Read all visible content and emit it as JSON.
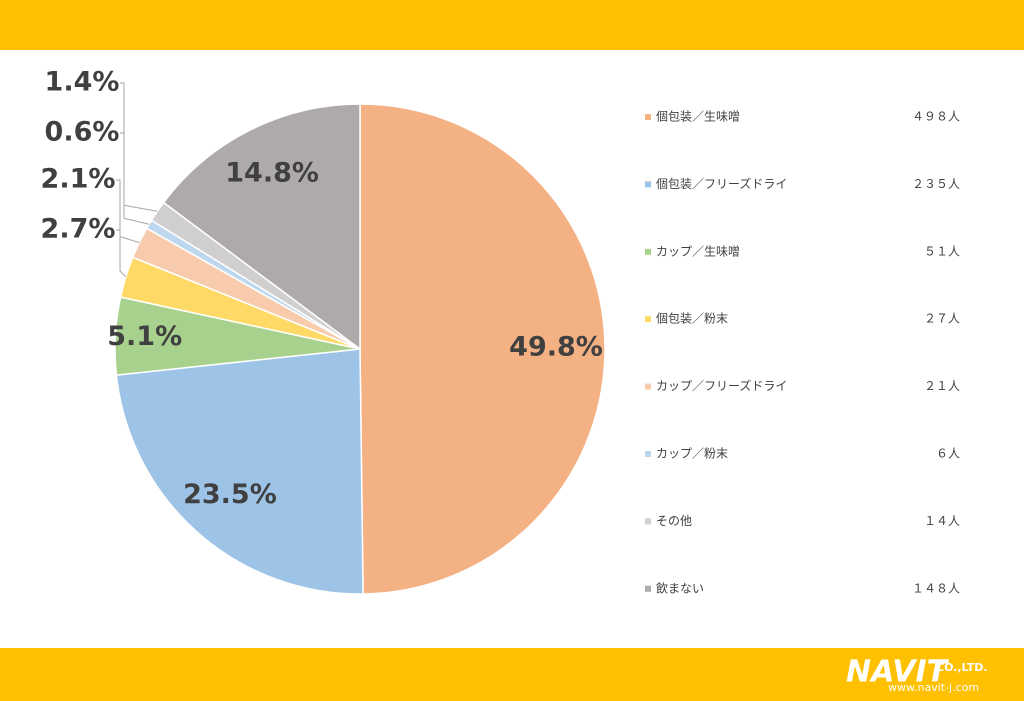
{
  "chart_data": {
    "type": "pie",
    "categories": [
      "個包装／生味噌",
      "個包装／フリーズドライ",
      "カップ／生味噌",
      "個包装／粉末",
      "カップ／フリーズドライ",
      "カップ／粉末",
      "その他",
      "飲まない"
    ],
    "values": [
      49.8,
      23.5,
      5.1,
      2.7,
      2.1,
      0.6,
      1.4,
      14.8
    ],
    "value_labels": [
      "49.8%",
      "23.5%",
      "5.1%",
      "2.7%",
      "2.1%",
      "0.6%",
      "1.4%",
      "14.8%"
    ],
    "legend_counts": [
      "４９８人",
      "２３５人",
      "５１人",
      "２７人",
      "２１人",
      "６人",
      "１４人",
      "１４８人"
    ],
    "colors": [
      "#F4B183",
      "#9DC3E6",
      "#A9D18E",
      "#FFD966",
      "#F8CBAD",
      "#BDD7EE",
      "#D0CECE",
      "#AEAAAA"
    ],
    "legend": "right"
  },
  "logo": {
    "name": "NAVIT",
    "suffix": "CO.,LTD.",
    "url": "www.navit-j.com"
  }
}
